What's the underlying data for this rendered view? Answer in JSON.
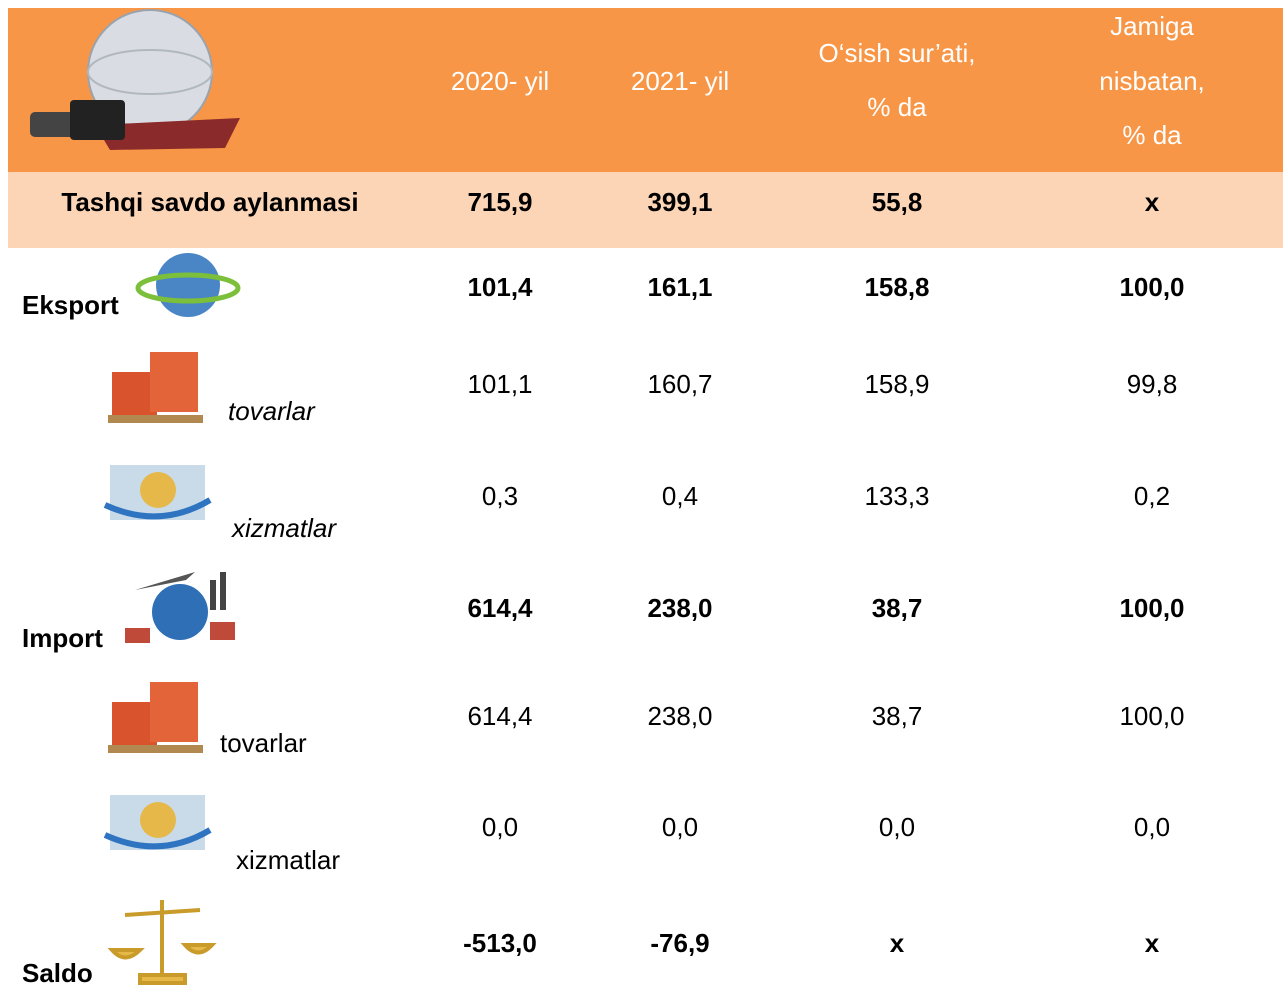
{
  "header": {
    "columns": [
      [
        "2020- yil"
      ],
      [
        "2021- yil"
      ],
      [
        "O‘sish sur’ati,",
        "% da"
      ],
      [
        "Jamiga",
        "nisbatan,",
        "% da"
      ]
    ]
  },
  "rows": [
    {
      "label": "Tashqi savdo aylanmasi",
      "cells": [
        "715,9",
        "399,1",
        "55,8",
        "x"
      ],
      "style": "bold"
    },
    {
      "label": "Eksport",
      "cells": [
        "101,4",
        "161,1",
        "158,8",
        "100,0"
      ],
      "style": "bold"
    },
    {
      "label": "tovarlar",
      "cells": [
        "101,1",
        "160,7",
        "158,9",
        "99,8"
      ],
      "style": "italic"
    },
    {
      "label": "xizmatlar",
      "cells": [
        "0,3",
        "0,4",
        "133,3",
        "0,2"
      ],
      "style": "italic"
    },
    {
      "label": "Import",
      "cells": [
        "614,4",
        "238,0",
        "38,7",
        "100,0"
      ],
      "style": "bold"
    },
    {
      "label": "tovarlar",
      "cells": [
        "614,4",
        "238,0",
        "38,7",
        "100,0"
      ],
      "style": "normal"
    },
    {
      "label": "xizmatlar",
      "cells": [
        "0,0",
        "0,0",
        "0,0",
        "0,0"
      ],
      "style": "normal"
    },
    {
      "label": "Saldo",
      "cells": [
        "-513,0",
        "-76,9",
        "x",
        "x"
      ],
      "style": "bold"
    }
  ]
}
